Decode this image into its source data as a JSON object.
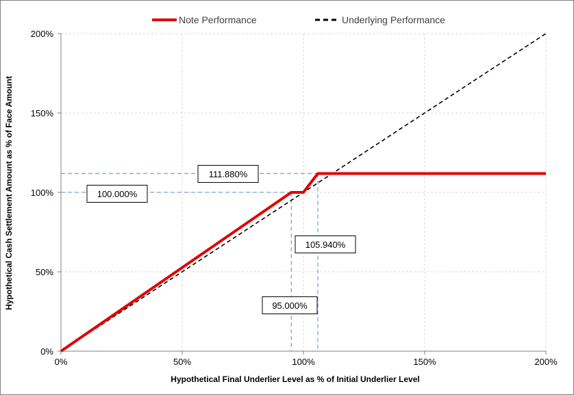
{
  "chart_data": {
    "type": "line",
    "title": "",
    "xlabel": "Hypothetical Final Underlier Level as % of Initial Underlier Level",
    "ylabel": "Hypothetical Cash Settlement Amount as % of Face Amount",
    "xlim": [
      0,
      200
    ],
    "ylim": [
      0,
      200
    ],
    "x_ticks": [
      0,
      50,
      100,
      150,
      200
    ],
    "x_tick_labels": [
      "0%",
      "50%",
      "100%",
      "150%",
      "200%"
    ],
    "y_ticks": [
      0,
      50,
      100,
      150,
      200
    ],
    "y_tick_labels": [
      "0%",
      "50%",
      "100%",
      "150%",
      "200%"
    ],
    "grid": true,
    "legend": {
      "placement": "top-center"
    },
    "series": [
      {
        "name": "Note Performance",
        "color": "#e00000",
        "style": "solid",
        "x": [
          0,
          95,
          100,
          105.94,
          200
        ],
        "y": [
          0,
          100,
          100,
          111.88,
          111.88
        ]
      },
      {
        "name": "Underlying Performance",
        "color": "#000000",
        "style": "dashed",
        "x": [
          0,
          200
        ],
        "y": [
          0,
          200
        ]
      }
    ],
    "annotations": [
      {
        "label": "111.880%",
        "kind": "horizontal",
        "value": 111.88
      },
      {
        "label": "100.000%",
        "kind": "horizontal",
        "value": 100
      },
      {
        "label": "105.940%",
        "kind": "vertical",
        "value": 105.94
      },
      {
        "label": "95.000%",
        "kind": "vertical",
        "value": 95
      }
    ]
  }
}
